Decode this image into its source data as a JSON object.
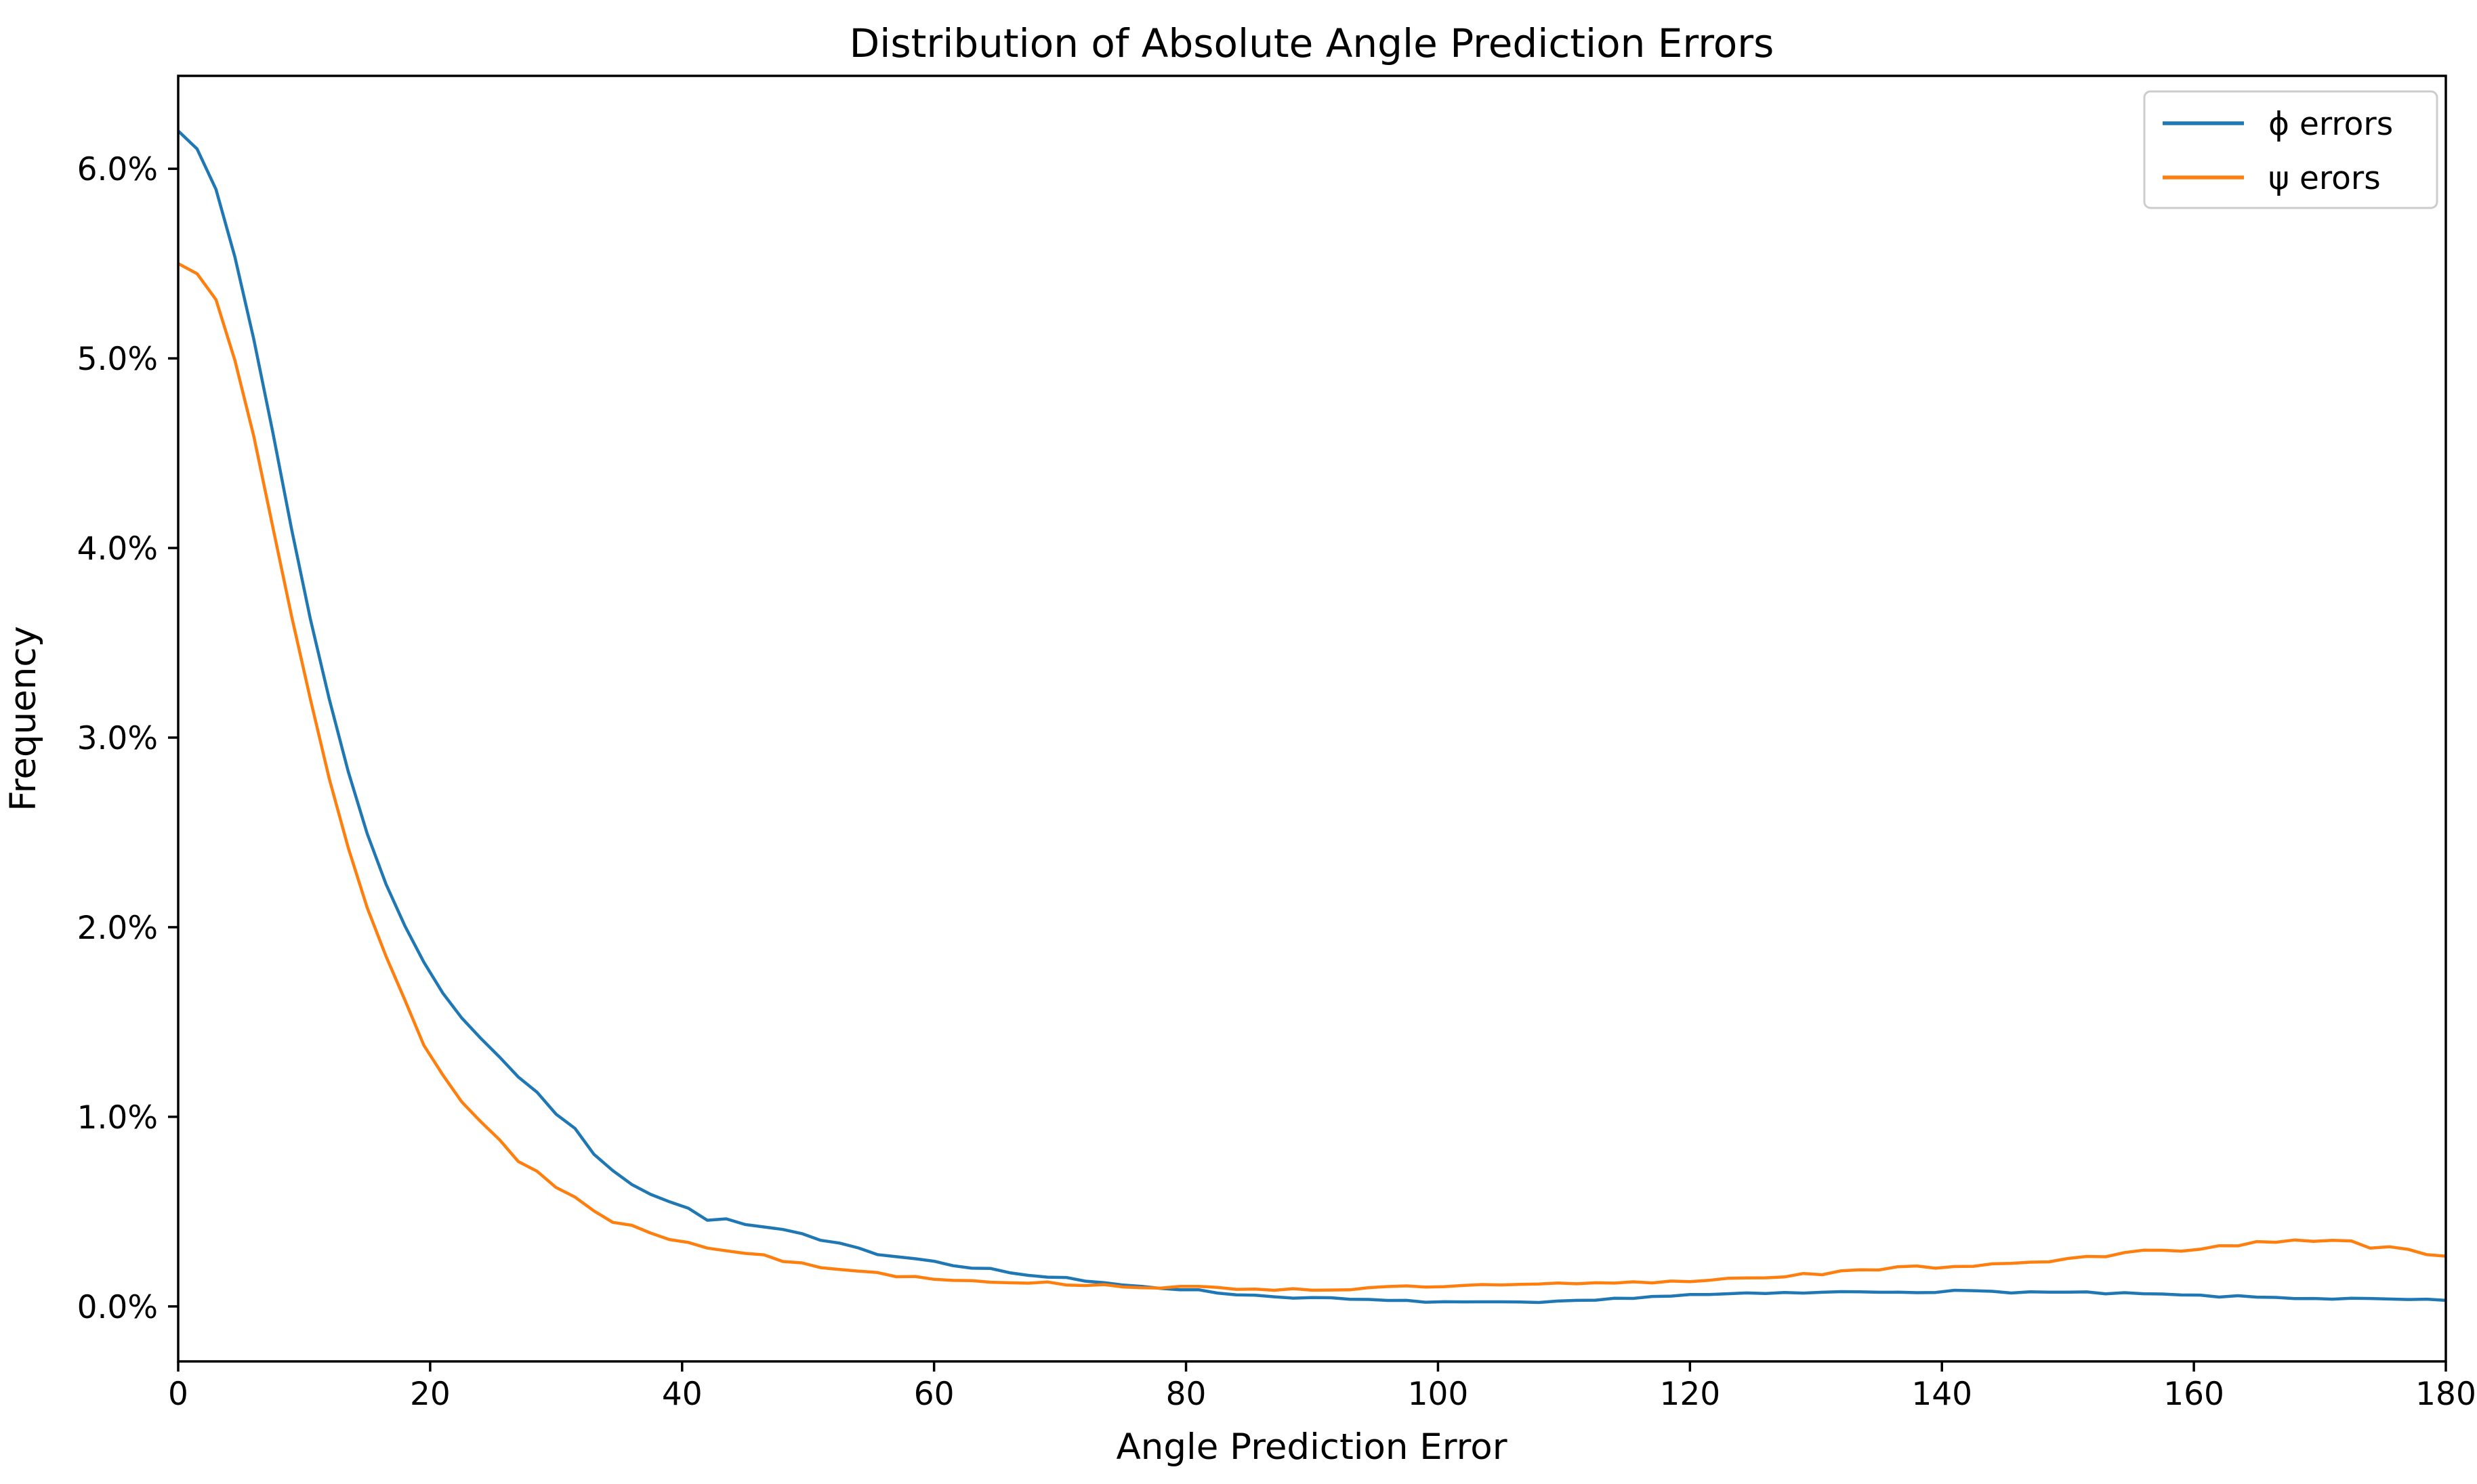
{
  "chart_data": {
    "type": "line",
    "title": "Distribution of Absolute Angle Prediction Errors",
    "xlabel": "Angle Prediction Error",
    "ylabel": "Frequency",
    "grid": false,
    "legend_position": "upper right",
    "xlim": [
      0,
      180
    ],
    "ylim_pct": [
      -0.29,
      6.49
    ],
    "x_ticks": [
      0,
      20,
      40,
      60,
      80,
      100,
      120,
      140,
      160,
      180
    ],
    "x_tick_labels": [
      "0",
      "20",
      "40",
      "60",
      "80",
      "100",
      "120",
      "140",
      "160",
      "180"
    ],
    "y_ticks_pct": [
      0,
      1,
      2,
      3,
      4,
      5,
      6
    ],
    "y_tick_labels": [
      "0.0%",
      "1.0%",
      "2.0%",
      "3.0%",
      "4.0%",
      "5.0%",
      "6.0%"
    ],
    "series": [
      {
        "name": "ϕ errors",
        "id": "phi-errors",
        "color": "#1f77b4",
        "points": [
          [
            0,
            6.2
          ],
          [
            1,
            6.18
          ],
          [
            2,
            6.05
          ],
          [
            3,
            5.88
          ],
          [
            4,
            5.66
          ],
          [
            5,
            5.4
          ],
          [
            6,
            5.1
          ],
          [
            7,
            4.78
          ],
          [
            8,
            4.45
          ],
          [
            9,
            4.1
          ],
          [
            10,
            3.78
          ],
          [
            11,
            3.48
          ],
          [
            12,
            3.2
          ],
          [
            13,
            2.93
          ],
          [
            14,
            2.7
          ],
          [
            15,
            2.5
          ],
          [
            16,
            2.32
          ],
          [
            17,
            2.15
          ],
          [
            18,
            2.0
          ],
          [
            19,
            1.87
          ],
          [
            20,
            1.76
          ],
          [
            22,
            1.56
          ],
          [
            24,
            1.42
          ],
          [
            26,
            1.28
          ],
          [
            28,
            1.15
          ],
          [
            30,
            1.02
          ],
          [
            32,
            0.88
          ],
          [
            34,
            0.76
          ],
          [
            36,
            0.66
          ],
          [
            38,
            0.58
          ],
          [
            40,
            0.52
          ],
          [
            42,
            0.47
          ],
          [
            44,
            0.44
          ],
          [
            46,
            0.42
          ],
          [
            48,
            0.4
          ],
          [
            50,
            0.36
          ],
          [
            52,
            0.33
          ],
          [
            54,
            0.3
          ],
          [
            56,
            0.28
          ],
          [
            58,
            0.26
          ],
          [
            60,
            0.24
          ],
          [
            62,
            0.22
          ],
          [
            64,
            0.2
          ],
          [
            66,
            0.18
          ],
          [
            68,
            0.16
          ],
          [
            70,
            0.15
          ],
          [
            72,
            0.13
          ],
          [
            74,
            0.12
          ],
          [
            76,
            0.11
          ],
          [
            78,
            0.1
          ],
          [
            80,
            0.09
          ],
          [
            82,
            0.075
          ],
          [
            84,
            0.065
          ],
          [
            86,
            0.055
          ],
          [
            88,
            0.05
          ],
          [
            90,
            0.045
          ],
          [
            92,
            0.04
          ],
          [
            94,
            0.035
          ],
          [
            96,
            0.03
          ],
          [
            98,
            0.027
          ],
          [
            100,
            0.025
          ],
          [
            104,
            0.02
          ],
          [
            108,
            0.02
          ],
          [
            112,
            0.03
          ],
          [
            116,
            0.05
          ],
          [
            120,
            0.06
          ],
          [
            124,
            0.065
          ],
          [
            128,
            0.07
          ],
          [
            132,
            0.075
          ],
          [
            136,
            0.078
          ],
          [
            140,
            0.08
          ],
          [
            144,
            0.078
          ],
          [
            148,
            0.075
          ],
          [
            152,
            0.07
          ],
          [
            156,
            0.065
          ],
          [
            160,
            0.057
          ],
          [
            164,
            0.05
          ],
          [
            168,
            0.045
          ],
          [
            172,
            0.04
          ],
          [
            176,
            0.036
          ],
          [
            180,
            0.032
          ]
        ]
      },
      {
        "name": "ψ erors",
        "id": "psi-errors",
        "color": "#ff7f0e",
        "points": [
          [
            0,
            5.5
          ],
          [
            1,
            5.48
          ],
          [
            2,
            5.42
          ],
          [
            3,
            5.32
          ],
          [
            4,
            5.12
          ],
          [
            5,
            4.88
          ],
          [
            6,
            4.6
          ],
          [
            7,
            4.28
          ],
          [
            8,
            3.97
          ],
          [
            9,
            3.65
          ],
          [
            10,
            3.35
          ],
          [
            11,
            3.06
          ],
          [
            12,
            2.78
          ],
          [
            13,
            2.52
          ],
          [
            14,
            2.3
          ],
          [
            15,
            2.1
          ],
          [
            16,
            1.92
          ],
          [
            17,
            1.76
          ],
          [
            18,
            1.62
          ],
          [
            19,
            1.45
          ],
          [
            20,
            1.32
          ],
          [
            22,
            1.12
          ],
          [
            24,
            0.97
          ],
          [
            26,
            0.84
          ],
          [
            28,
            0.73
          ],
          [
            30,
            0.63
          ],
          [
            32,
            0.55
          ],
          [
            34,
            0.47
          ],
          [
            36,
            0.42
          ],
          [
            38,
            0.38
          ],
          [
            40,
            0.35
          ],
          [
            42,
            0.32
          ],
          [
            44,
            0.3
          ],
          [
            46,
            0.27
          ],
          [
            48,
            0.24
          ],
          [
            50,
            0.22
          ],
          [
            52,
            0.2
          ],
          [
            54,
            0.19
          ],
          [
            56,
            0.17
          ],
          [
            58,
            0.16
          ],
          [
            60,
            0.15
          ],
          [
            62,
            0.14
          ],
          [
            64,
            0.135
          ],
          [
            66,
            0.13
          ],
          [
            68,
            0.125
          ],
          [
            70,
            0.12
          ],
          [
            72,
            0.115
          ],
          [
            74,
            0.11
          ],
          [
            76,
            0.105
          ],
          [
            78,
            0.1
          ],
          [
            80,
            0.1
          ],
          [
            84,
            0.095
          ],
          [
            88,
            0.09
          ],
          [
            92,
            0.09
          ],
          [
            96,
            0.1
          ],
          [
            100,
            0.105
          ],
          [
            104,
            0.11
          ],
          [
            108,
            0.115
          ],
          [
            112,
            0.12
          ],
          [
            116,
            0.125
          ],
          [
            120,
            0.135
          ],
          [
            124,
            0.15
          ],
          [
            128,
            0.165
          ],
          [
            132,
            0.18
          ],
          [
            136,
            0.2
          ],
          [
            140,
            0.21
          ],
          [
            144,
            0.225
          ],
          [
            148,
            0.24
          ],
          [
            152,
            0.26
          ],
          [
            156,
            0.285
          ],
          [
            160,
            0.31
          ],
          [
            164,
            0.33
          ],
          [
            168,
            0.34
          ],
          [
            170,
            0.335
          ],
          [
            172,
            0.34
          ],
          [
            174,
            0.32
          ],
          [
            176,
            0.3
          ],
          [
            178,
            0.29
          ],
          [
            180,
            0.265
          ]
        ]
      }
    ]
  }
}
